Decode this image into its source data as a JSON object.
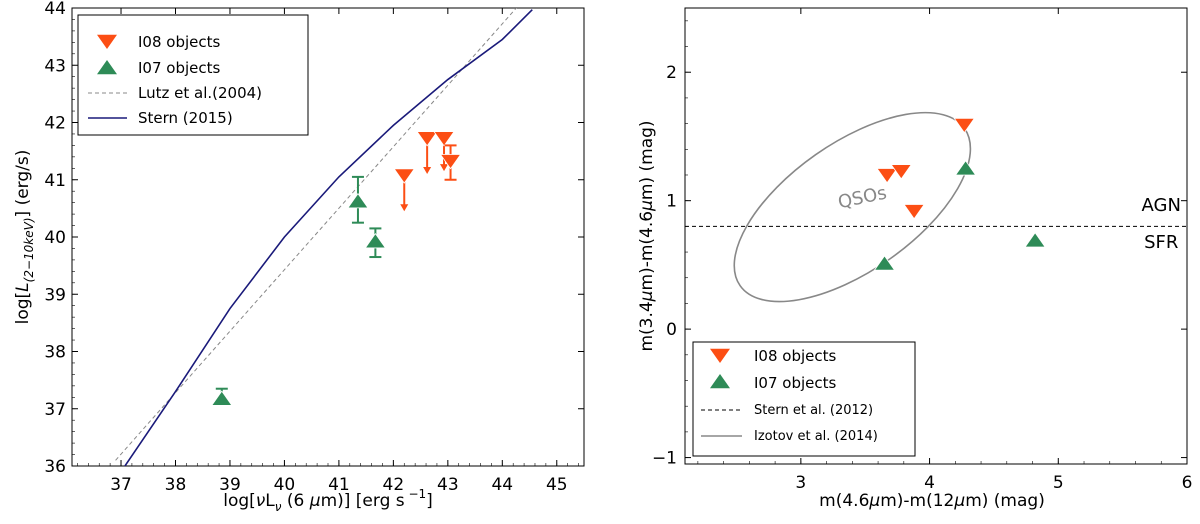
{
  "colors": {
    "i08": "#fc4e14",
    "i07": "#2e8b57",
    "stern2015": "#1a1a7a",
    "lutz": "#888888",
    "izotov": "#888888"
  },
  "chart_data": [
    {
      "type": "scatter",
      "panel": "left",
      "xlabel": "log[νLν (6 μm)] [erg s −1]",
      "ylabel": "log[L(2−10keV)] (erg/s)",
      "xlim": [
        36.1,
        45.5
      ],
      "ylim": [
        36,
        44
      ],
      "xticks": [
        37,
        38,
        39,
        40,
        41,
        42,
        43,
        44,
        45
      ],
      "yticks": [
        36,
        37,
        38,
        39,
        40,
        41,
        42,
        43,
        44
      ],
      "legend": [
        {
          "label": "I08 objects",
          "kind": "down-triangle"
        },
        {
          "label": "I07 objects",
          "kind": "up-triangle"
        },
        {
          "label": "Lutz et al.(2004)",
          "kind": "dashed-line"
        },
        {
          "label": "Stern (2015)",
          "kind": "solid-line"
        }
      ],
      "series": [
        {
          "name": "I08 objects",
          "marker": "down-triangle",
          "upper_limit": true,
          "points": [
            {
              "x": 42.2,
              "y": 41.1,
              "arrow_to": 40.45
            },
            {
              "x": 42.62,
              "y": 41.75,
              "arrow_to": 41.1
            },
            {
              "x": 42.93,
              "y": 41.75,
              "arrow_to": 41.15
            },
            {
              "x": 43.05,
              "y": 41.35,
              "err_lo": 41.0,
              "err_hi": 41.6
            }
          ]
        },
        {
          "name": "I07 objects",
          "marker": "up-triangle",
          "points": [
            {
              "x": 38.85,
              "y": 37.15,
              "err_lo": 37.1,
              "err_hi": 37.35
            },
            {
              "x": 41.35,
              "y": 40.6,
              "err_lo": 40.25,
              "err_hi": 41.05
            },
            {
              "x": 41.67,
              "y": 39.9,
              "err_lo": 39.65,
              "err_hi": 40.15
            }
          ]
        },
        {
          "name": "Lutz et al.(2004)",
          "line": "dashed",
          "x": [
            36.9,
            44.35
          ],
          "y": [
            36.1,
            44.1
          ]
        },
        {
          "name": "Stern (2015)",
          "line": "solid",
          "x": [
            37.0,
            38.0,
            39.0,
            40.0,
            41.0,
            42.0,
            43.0,
            44.0,
            44.55
          ],
          "y": [
            35.9,
            37.3,
            38.75,
            40.0,
            41.05,
            41.95,
            42.75,
            43.45,
            43.97
          ]
        }
      ]
    },
    {
      "type": "scatter",
      "panel": "right",
      "xlabel": "m(4.6μm)-m(12μm) (mag)",
      "ylabel": "m(3.4μm)-m(4.6μm) (mag)",
      "xlim": [
        2.1,
        6.0
      ],
      "ylim": [
        -1.05,
        2.5
      ],
      "xticks": [
        3,
        4,
        5,
        6
      ],
      "yticks": [
        -1,
        0,
        1,
        2
      ],
      "annotations": [
        {
          "text": "QSOs",
          "x": 3.3,
          "y": 0.94
        },
        {
          "text": "AGN",
          "x": 5.8,
          "y": 0.92
        },
        {
          "text": "SFR",
          "x": 5.8,
          "y": 0.63
        }
      ],
      "legend": [
        {
          "label": "I08 objects",
          "kind": "down-triangle"
        },
        {
          "label": "I07 objects",
          "kind": "up-triangle"
        },
        {
          "label": "Stern et al. (2012)",
          "kind": "dashed-line"
        },
        {
          "label": "Izotov et al. (2014)",
          "kind": "solid-line"
        }
      ],
      "series": [
        {
          "name": "I08 objects",
          "marker": "down-triangle",
          "points": [
            {
              "x": 3.67,
              "y": 1.21
            },
            {
              "x": 3.78,
              "y": 1.24
            },
            {
              "x": 3.88,
              "y": 0.93
            },
            {
              "x": 4.27,
              "y": 1.6
            }
          ]
        },
        {
          "name": "I07 objects",
          "marker": "up-triangle",
          "points": [
            {
              "x": 3.65,
              "y": 0.5
            },
            {
              "x": 4.28,
              "y": 1.24
            },
            {
              "x": 4.82,
              "y": 0.68
            }
          ]
        },
        {
          "name": "Stern et al. (2012)",
          "line": "dashed",
          "y_const": 0.8
        },
        {
          "name": "Izotov et al. (2014)",
          "shape": "ellipse",
          "cx": 3.4,
          "cy": 0.95,
          "rx_deg": 35
        }
      ]
    }
  ]
}
